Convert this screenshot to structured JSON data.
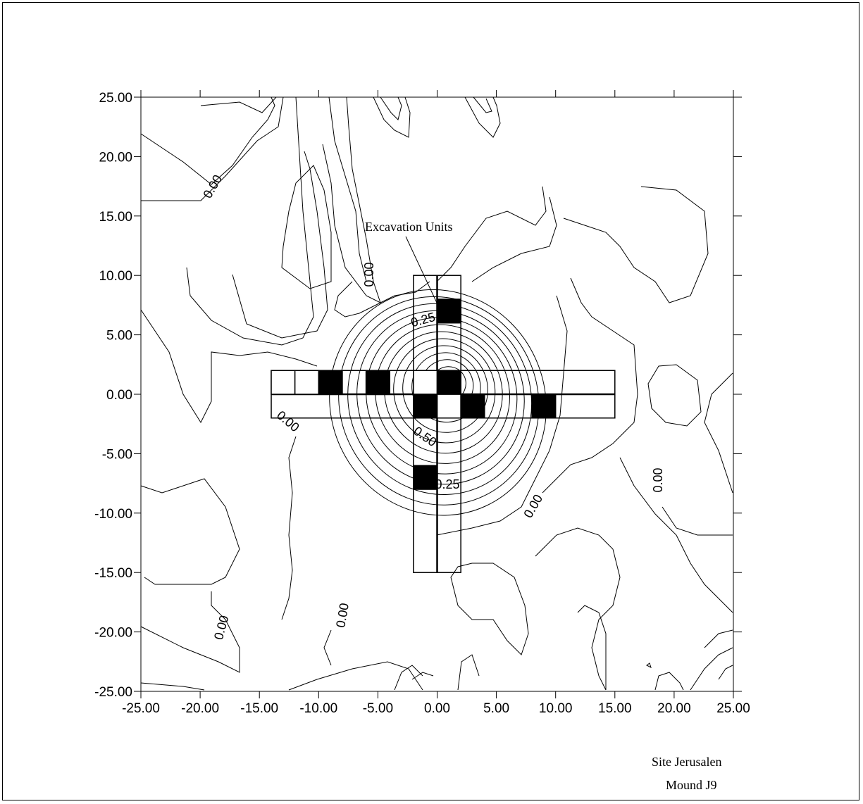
{
  "chart_data": {
    "type": "contour",
    "xlim": [
      -25,
      25
    ],
    "ylim": [
      -25,
      25
    ],
    "x_ticks": [
      "-25.00",
      "-20.00",
      "-15.00",
      "-10.00",
      "-5.00",
      "0.00",
      "5.00",
      "10.00",
      "15.00",
      "20.00",
      "25.00"
    ],
    "y_ticks": [
      "25.00",
      "20.00",
      "15.00",
      "10.00",
      "5.00",
      "0.00",
      "-5.00",
      "-10.00",
      "-15.00",
      "-20.00",
      "-25.00"
    ],
    "peak": {
      "x": 1.0,
      "y": 1.0
    },
    "contour_labels": [
      "0.00",
      "0.00",
      "0.25",
      "0.00",
      "0.50",
      "0.25",
      "0.00",
      "0.00",
      "0.00",
      "0.00"
    ],
    "annotation": "Excavation Units",
    "excavation_units": {
      "ew_trench": {
        "x": [
          -14,
          15
        ],
        "y": [
          -2,
          2
        ]
      },
      "ns_trench": {
        "x": [
          -2,
          2
        ],
        "y": [
          -15,
          10
        ]
      },
      "excavated_squares": [
        {
          "x": 0,
          "y": 6
        },
        {
          "x": -10,
          "y": 0
        },
        {
          "x": -6,
          "y": 0
        },
        {
          "x": 0,
          "y": 0
        },
        {
          "x": -2,
          "y": -2
        },
        {
          "x": 2,
          "y": -2
        },
        {
          "x": 8,
          "y": -2
        },
        {
          "x": -2,
          "y": -8
        }
      ],
      "open_squares": [
        {
          "x": -14,
          "y": 0
        },
        {
          "x": -12,
          "y": 0
        },
        {
          "x": -2,
          "y": 0
        },
        {
          "x": 0,
          "y": -2
        }
      ]
    }
  },
  "footer": {
    "site": "Site Jerusalen",
    "mound": "Mound J9"
  }
}
